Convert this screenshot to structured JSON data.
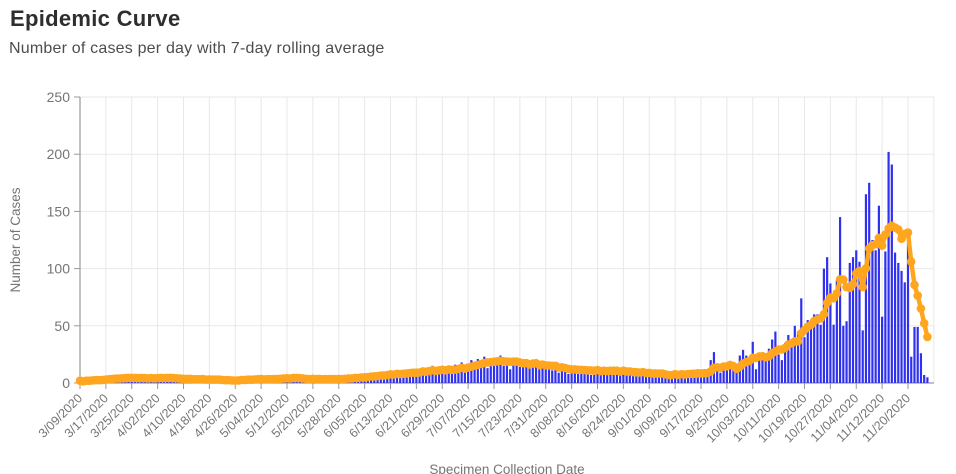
{
  "page": {
    "title": "Epidemic Curve",
    "subtitle": "Number of cases per day with 7-day rolling average"
  },
  "colors": {
    "bar": "#3030ef",
    "average": "#ffa51e",
    "grid": "#e8e8e8",
    "axis": "#999999",
    "tick_text": "#757575",
    "title_text": "#2e2e2e",
    "subtitle_text": "#4d4d4d"
  },
  "chart_data": {
    "type": "bar",
    "title": "Epidemic Curve",
    "subtitle": "Number of cases per day with 7-day rolling average",
    "xlabel": "Specimen Collection Date",
    "ylabel": "Number of Cases",
    "ylim": [
      0,
      250
    ],
    "yticks": [
      0,
      50,
      100,
      150,
      200,
      250
    ],
    "grid": true,
    "legend": "none",
    "x_start_date": "3/09/2020",
    "x_end_date": "11/26/2020",
    "x_tick_interval_days": 8,
    "x_tick_labels": [
      "3/09/2020",
      "3/17/2020",
      "3/25/2020",
      "4/02/2020",
      "4/10/2020",
      "4/18/2020",
      "4/26/2020",
      "5/04/2020",
      "5/12/2020",
      "5/20/2020",
      "5/28/2020",
      "6/05/2020",
      "6/13/2020",
      "6/21/2020",
      "6/29/2020",
      "7/07/2020",
      "7/15/2020",
      "7/23/2020",
      "7/31/2020",
      "8/08/2020",
      "8/16/2020",
      "8/24/2020",
      "9/01/2020",
      "9/09/2020",
      "9/17/2020",
      "9/25/2020",
      "10/03/2020",
      "10/11/2020",
      "10/19/2020",
      "10/27/2020",
      "11/04/2020",
      "11/12/2020",
      "11/20/2020"
    ],
    "series": [
      {
        "name": "Cases per day",
        "type": "bar",
        "color": "#3030ef",
        "values": [
          2,
          1,
          3,
          2,
          4,
          3,
          2,
          4,
          3,
          5,
          4,
          6,
          3,
          4,
          5,
          4,
          6,
          3,
          5,
          4,
          3,
          4,
          5,
          5,
          4,
          6,
          3,
          4,
          5,
          3,
          4,
          2,
          5,
          3,
          4,
          2,
          3,
          4,
          3,
          2,
          4,
          3,
          2,
          3,
          2,
          1,
          3,
          2,
          2,
          3,
          6,
          2,
          3,
          2,
          4,
          3,
          5,
          3,
          4,
          2,
          3,
          5,
          4,
          7,
          4,
          3,
          5,
          3,
          4,
          2,
          4,
          3,
          5,
          3,
          4,
          2,
          3,
          4,
          3,
          5,
          4,
          3,
          4,
          5,
          4,
          6,
          5,
          7,
          4,
          6,
          8,
          5,
          7,
          9,
          6,
          8,
          10,
          7,
          9,
          6,
          11,
          8,
          10,
          12,
          7,
          10,
          13,
          9,
          12,
          15,
          8,
          11,
          13,
          10,
          14,
          10,
          16,
          12,
          18,
          9,
          15,
          20,
          16,
          21,
          18,
          23,
          13,
          17,
          22,
          19,
          24,
          15,
          21,
          12,
          18,
          22,
          14,
          19,
          16,
          13,
          17,
          20,
          12,
          16,
          14,
          15,
          11,
          17,
          9,
          14,
          12,
          8,
          13,
          10,
          15,
          9,
          12,
          11,
          7,
          11,
          14,
          8,
          12,
          10,
          13,
          7,
          11,
          9,
          13,
          8,
          10,
          9,
          6,
          9,
          12,
          8,
          8,
          6,
          10,
          5,
          9,
          7,
          4,
          8,
          11,
          6,
          9,
          7,
          10,
          5,
          9,
          12,
          7,
          10,
          8,
          20,
          27,
          12,
          9,
          15,
          11,
          17,
          13,
          10,
          24,
          29,
          24,
          18,
          36,
          12,
          20,
          25,
          22,
          30,
          38,
          45,
          25,
          20,
          35,
          42,
          38,
          50,
          45,
          74,
          40,
          55,
          55,
          60,
          60,
          51,
          100,
          110,
          87,
          51,
          90,
          145,
          50,
          54,
          105,
          110,
          116,
          106,
          46,
          165,
          175,
          125,
          116,
          155,
          58,
          115,
          202,
          191,
          114,
          105,
          98,
          88,
          123,
          23,
          49,
          49,
          26,
          7,
          5
        ]
      },
      {
        "name": "7-day rolling average",
        "type": "line_with_markers",
        "color": "#ffa51e",
        "derived_from": "Cases per day",
        "derivation": "trailing 7-day mean"
      }
    ]
  }
}
